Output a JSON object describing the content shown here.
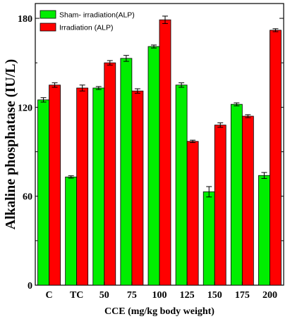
{
  "chart_data": {
    "type": "bar",
    "title": "",
    "xlabel": "CCE (mg/kg body weight)",
    "ylabel": "Alkaline phosphatase (IU/L)",
    "ylim": [
      0,
      190
    ],
    "yticks": [
      "0",
      "60",
      "120",
      "180"
    ],
    "grid": false,
    "legend_position": "top-left",
    "categories": [
      "C",
      "TC",
      "50",
      "75",
      "100",
      "125",
      "150",
      "175",
      "200"
    ],
    "series": [
      {
        "name": "Sham- irradiation(ALP)",
        "color": "#00ee00",
        "values": [
          125,
          73,
          133,
          153,
          161,
          135,
          63,
          122,
          74
        ],
        "errors": [
          1.5,
          0.8,
          1.0,
          2.0,
          1.0,
          1.5,
          3.5,
          1.0,
          2.0
        ]
      },
      {
        "name": "Irradiation (ALP)",
        "color": "#ff0000",
        "values": [
          135,
          133,
          150,
          131,
          179,
          97,
          108,
          114,
          172
        ],
        "errors": [
          1.5,
          2.0,
          1.5,
          1.5,
          2.5,
          0.8,
          1.5,
          1.0,
          1.0
        ]
      }
    ]
  }
}
